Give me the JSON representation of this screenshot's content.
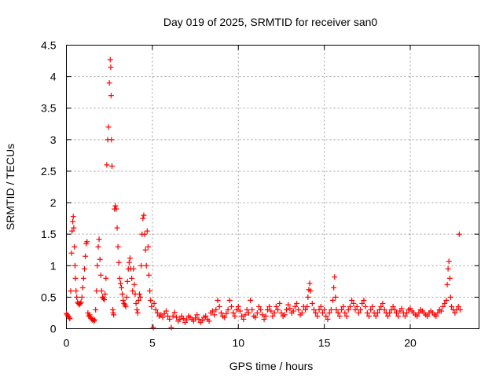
{
  "chart_data": {
    "type": "scatter",
    "title": "Day 019 of 2025, SRMTID for receiver san0",
    "xlabel": "GPS time / hours",
    "ylabel": "SRMTID / TECUs",
    "xlim": [
      0,
      24
    ],
    "ylim": [
      0,
      4.5
    ],
    "grid": true,
    "marker": "plus",
    "marker_color": "#ff0000",
    "xticks": [
      0,
      5,
      10,
      15,
      20
    ],
    "xtick_labels": [
      "0",
      "5",
      "10",
      "15",
      "20"
    ],
    "yticks": [
      0,
      0.5,
      1,
      1.5,
      2,
      2.5,
      3,
      3.5,
      4,
      4.5
    ],
    "ytick_labels": [
      "0",
      "0.5",
      "1",
      "1.5",
      "2",
      "2.5",
      "3",
      "3.5",
      "4",
      "4.5"
    ],
    "series": [
      {
        "name": "SRMTID",
        "points": [
          [
            0.0,
            0.24
          ],
          [
            0.05,
            0.22
          ],
          [
            0.1,
            0.2
          ],
          [
            0.15,
            0.18
          ],
          [
            0.2,
            0.16
          ],
          [
            0.25,
            0.6
          ],
          [
            0.3,
            1.2
          ],
          [
            0.33,
            1.55
          ],
          [
            0.37,
            1.7
          ],
          [
            0.4,
            1.78
          ],
          [
            0.43,
            1.6
          ],
          [
            0.46,
            1.3
          ],
          [
            0.5,
            1.0
          ],
          [
            0.53,
            0.8
          ],
          [
            0.56,
            0.6
          ],
          [
            0.6,
            0.5
          ],
          [
            0.65,
            0.42
          ],
          [
            0.7,
            0.4
          ],
          [
            0.75,
            0.38
          ],
          [
            0.8,
            0.4
          ],
          [
            0.85,
            0.42
          ],
          [
            0.9,
            0.5
          ],
          [
            0.95,
            0.65
          ],
          [
            1.0,
            0.8
          ],
          [
            1.05,
            0.95
          ],
          [
            1.1,
            1.15
          ],
          [
            1.15,
            1.35
          ],
          [
            1.2,
            1.38
          ],
          [
            1.25,
            0.25
          ],
          [
            1.3,
            0.2
          ],
          [
            1.35,
            0.22
          ],
          [
            1.4,
            0.18
          ],
          [
            1.45,
            0.16
          ],
          [
            1.5,
            0.14
          ],
          [
            1.55,
            0.15
          ],
          [
            1.6,
            0.12
          ],
          [
            1.65,
            0.14
          ],
          [
            1.7,
            0.3
          ],
          [
            1.75,
            0.6
          ],
          [
            1.8,
            1.0
          ],
          [
            1.85,
            1.3
          ],
          [
            1.9,
            1.42
          ],
          [
            1.95,
            1.1
          ],
          [
            2.0,
            0.85
          ],
          [
            2.05,
            0.6
          ],
          [
            2.1,
            0.5
          ],
          [
            2.15,
            0.48
          ],
          [
            2.2,
            0.46
          ],
          [
            2.25,
            0.55
          ],
          [
            2.3,
            0.8
          ],
          [
            2.35,
            2.6
          ],
          [
            2.4,
            3.0
          ],
          [
            2.45,
            3.2
          ],
          [
            2.5,
            3.9
          ],
          [
            2.55,
            4.27
          ],
          [
            2.58,
            4.15
          ],
          [
            2.6,
            3.7
          ],
          [
            2.62,
            3.0
          ],
          [
            2.65,
            2.58
          ],
          [
            2.7,
            0.3
          ],
          [
            2.72,
            0.25
          ],
          [
            2.75,
            0.22
          ],
          [
            2.8,
            1.9
          ],
          [
            2.85,
            1.95
          ],
          [
            2.9,
            1.9
          ],
          [
            2.95,
            1.6
          ],
          [
            3.0,
            1.3
          ],
          [
            3.05,
            1.05
          ],
          [
            3.1,
            0.8
          ],
          [
            3.15,
            0.72
          ],
          [
            3.2,
            0.65
          ],
          [
            3.25,
            0.55
          ],
          [
            3.3,
            0.45
          ],
          [
            3.35,
            0.4
          ],
          [
            3.4,
            0.38
          ],
          [
            3.45,
            0.35
          ],
          [
            3.5,
            0.5
          ],
          [
            3.55,
            0.75
          ],
          [
            3.6,
            0.95
          ],
          [
            3.65,
            1.05
          ],
          [
            3.7,
            1.12
          ],
          [
            3.75,
            0.95
          ],
          [
            3.8,
            0.8
          ],
          [
            3.85,
            0.6
          ],
          [
            3.9,
            0.95
          ],
          [
            3.95,
            0.7
          ],
          [
            4.0,
            0.55
          ],
          [
            4.05,
            0.4
          ],
          [
            4.1,
            0.3
          ],
          [
            4.15,
            0.25
          ],
          [
            4.2,
            0.45
          ],
          [
            4.25,
            0.55
          ],
          [
            4.3,
            0.5
          ],
          [
            4.35,
            1.0
          ],
          [
            4.4,
            1.5
          ],
          [
            4.45,
            1.75
          ],
          [
            4.5,
            1.8
          ],
          [
            4.55,
            1.5
          ],
          [
            4.6,
            1.25
          ],
          [
            4.65,
            1.0
          ],
          [
            4.7,
            1.55
          ],
          [
            4.75,
            1.3
          ],
          [
            4.8,
            0.85
          ],
          [
            4.85,
            0.6
          ],
          [
            4.9,
            0.45
          ],
          [
            4.95,
            0.35
          ],
          [
            5.05,
            0.02
          ],
          [
            5.1,
            0.4
          ],
          [
            5.2,
            0.3
          ],
          [
            5.3,
            0.25
          ],
          [
            5.4,
            0.2
          ],
          [
            5.5,
            0.22
          ],
          [
            5.6,
            0.18
          ],
          [
            5.7,
            0.24
          ],
          [
            5.8,
            0.28
          ],
          [
            5.9,
            0.2
          ],
          [
            6.0,
            0.15
          ],
          [
            6.1,
            0.02
          ],
          [
            6.2,
            0.2
          ],
          [
            6.3,
            0.26
          ],
          [
            6.4,
            0.18
          ],
          [
            6.5,
            0.12
          ],
          [
            6.6,
            0.15
          ],
          [
            6.7,
            0.2
          ],
          [
            6.8,
            0.16
          ],
          [
            6.9,
            0.1
          ],
          [
            7.0,
            0.14
          ],
          [
            7.1,
            0.2
          ],
          [
            7.2,
            0.18
          ],
          [
            7.3,
            0.15
          ],
          [
            7.4,
            0.12
          ],
          [
            7.5,
            0.17
          ],
          [
            7.6,
            0.22
          ],
          [
            7.7,
            0.15
          ],
          [
            7.8,
            0.1
          ],
          [
            7.9,
            0.13
          ],
          [
            8.0,
            0.18
          ],
          [
            8.1,
            0.2
          ],
          [
            8.2,
            0.15
          ],
          [
            8.3,
            0.12
          ],
          [
            8.4,
            0.25
          ],
          [
            8.5,
            0.28
          ],
          [
            8.6,
            0.22
          ],
          [
            8.7,
            0.3
          ],
          [
            8.8,
            0.45
          ],
          [
            8.9,
            0.35
          ],
          [
            9.0,
            0.25
          ],
          [
            9.1,
            0.2
          ],
          [
            9.2,
            0.18
          ],
          [
            9.3,
            0.24
          ],
          [
            9.4,
            0.3
          ],
          [
            9.5,
            0.45
          ],
          [
            9.6,
            0.35
          ],
          [
            9.7,
            0.25
          ],
          [
            9.8,
            0.2
          ],
          [
            9.9,
            0.3
          ],
          [
            10.0,
            0.35
          ],
          [
            10.1,
            0.28
          ],
          [
            10.2,
            0.2
          ],
          [
            10.3,
            0.15
          ],
          [
            10.4,
            0.22
          ],
          [
            10.5,
            0.3
          ],
          [
            10.6,
            0.25
          ],
          [
            10.7,
            0.45
          ],
          [
            10.8,
            0.3
          ],
          [
            10.9,
            0.2
          ],
          [
            11.0,
            0.18
          ],
          [
            11.1,
            0.25
          ],
          [
            11.2,
            0.35
          ],
          [
            11.3,
            0.3
          ],
          [
            11.4,
            0.22
          ],
          [
            11.5,
            0.15
          ],
          [
            11.6,
            0.2
          ],
          [
            11.7,
            0.3
          ],
          [
            11.8,
            0.35
          ],
          [
            11.9,
            0.28
          ],
          [
            12.0,
            0.2
          ],
          [
            12.1,
            0.25
          ],
          [
            12.2,
            0.35
          ],
          [
            12.3,
            0.3
          ],
          [
            12.4,
            0.4
          ],
          [
            12.5,
            0.25
          ],
          [
            12.6,
            0.2
          ],
          [
            12.7,
            0.22
          ],
          [
            12.8,
            0.3
          ],
          [
            12.9,
            0.38
          ],
          [
            13.0,
            0.32
          ],
          [
            13.1,
            0.25
          ],
          [
            13.2,
            0.28
          ],
          [
            13.3,
            0.35
          ],
          [
            13.4,
            0.4
          ],
          [
            13.5,
            0.3
          ],
          [
            13.6,
            0.22
          ],
          [
            13.7,
            0.25
          ],
          [
            13.8,
            0.35
          ],
          [
            13.9,
            0.3
          ],
          [
            14.0,
            0.35
          ],
          [
            14.05,
            0.5
          ],
          [
            14.1,
            0.62
          ],
          [
            14.15,
            0.72
          ],
          [
            14.2,
            0.6
          ],
          [
            14.3,
            0.4
          ],
          [
            14.4,
            0.3
          ],
          [
            14.5,
            0.25
          ],
          [
            14.6,
            0.2
          ],
          [
            14.7,
            0.3
          ],
          [
            14.8,
            0.35
          ],
          [
            14.9,
            0.25
          ],
          [
            15.0,
            0.3
          ],
          [
            15.1,
            0.2
          ],
          [
            15.2,
            0.15
          ],
          [
            15.3,
            0.25
          ],
          [
            15.4,
            0.3
          ],
          [
            15.5,
            0.45
          ],
          [
            15.55,
            0.65
          ],
          [
            15.6,
            0.82
          ],
          [
            15.65,
            0.5
          ],
          [
            15.7,
            0.3
          ],
          [
            15.8,
            0.25
          ],
          [
            15.9,
            0.2
          ],
          [
            16.0,
            0.3
          ],
          [
            16.1,
            0.35
          ],
          [
            16.2,
            0.25
          ],
          [
            16.3,
            0.2
          ],
          [
            16.4,
            0.3
          ],
          [
            16.5,
            0.35
          ],
          [
            16.6,
            0.45
          ],
          [
            16.7,
            0.4
          ],
          [
            16.8,
            0.3
          ],
          [
            16.9,
            0.35
          ],
          [
            17.0,
            0.25
          ],
          [
            17.1,
            0.3
          ],
          [
            17.2,
            0.4
          ],
          [
            17.3,
            0.45
          ],
          [
            17.4,
            0.35
          ],
          [
            17.5,
            0.25
          ],
          [
            17.6,
            0.2
          ],
          [
            17.7,
            0.3
          ],
          [
            17.8,
            0.35
          ],
          [
            17.9,
            0.25
          ],
          [
            18.0,
            0.2
          ],
          [
            18.1,
            0.25
          ],
          [
            18.2,
            0.3
          ],
          [
            18.3,
            0.35
          ],
          [
            18.4,
            0.4
          ],
          [
            18.5,
            0.3
          ],
          [
            18.6,
            0.25
          ],
          [
            18.7,
            0.2
          ],
          [
            18.8,
            0.25
          ],
          [
            18.9,
            0.3
          ],
          [
            19.0,
            0.35
          ],
          [
            19.1,
            0.3
          ],
          [
            19.2,
            0.25
          ],
          [
            19.3,
            0.2
          ],
          [
            19.4,
            0.28
          ],
          [
            19.5,
            0.32
          ],
          [
            19.6,
            0.25
          ],
          [
            19.7,
            0.2
          ],
          [
            19.8,
            0.25
          ],
          [
            19.9,
            0.3
          ],
          [
            20.0,
            0.32
          ],
          [
            20.1,
            0.28
          ],
          [
            20.2,
            0.25
          ],
          [
            20.3,
            0.22
          ],
          [
            20.4,
            0.2
          ],
          [
            20.5,
            0.25
          ],
          [
            20.6,
            0.3
          ],
          [
            20.7,
            0.28
          ],
          [
            20.8,
            0.25
          ],
          [
            20.9,
            0.22
          ],
          [
            21.0,
            0.2
          ],
          [
            21.1,
            0.25
          ],
          [
            21.2,
            0.28
          ],
          [
            21.3,
            0.25
          ],
          [
            21.4,
            0.22
          ],
          [
            21.5,
            0.2
          ],
          [
            21.6,
            0.25
          ],
          [
            21.7,
            0.3
          ],
          [
            21.8,
            0.28
          ],
          [
            21.9,
            0.35
          ],
          [
            22.0,
            0.4
          ],
          [
            22.1,
            0.45
          ],
          [
            22.15,
            0.7
          ],
          [
            22.2,
            0.95
          ],
          [
            22.25,
            1.07
          ],
          [
            22.3,
            0.8
          ],
          [
            22.35,
            0.5
          ],
          [
            22.4,
            0.35
          ],
          [
            22.5,
            0.3
          ],
          [
            22.6,
            0.25
          ],
          [
            22.7,
            0.3
          ],
          [
            22.8,
            0.35
          ],
          [
            22.85,
            1.5
          ],
          [
            22.9,
            0.3
          ]
        ]
      }
    ]
  }
}
